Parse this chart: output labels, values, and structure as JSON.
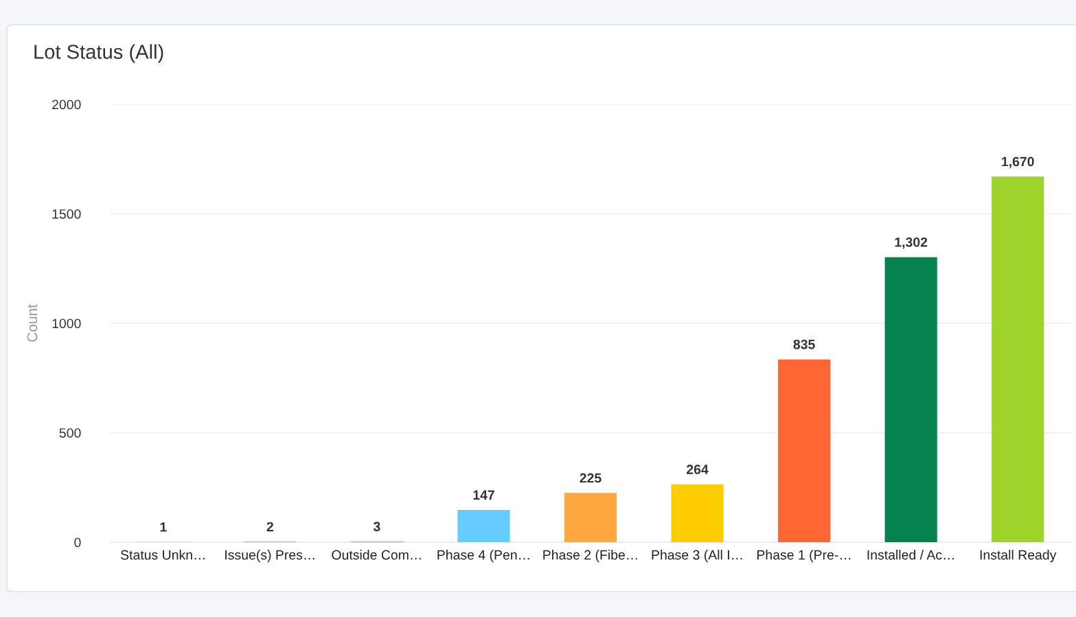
{
  "chart_data": {
    "type": "bar",
    "title": "Lot Status (All)",
    "ylabel": "Count",
    "categories": [
      "Status Unkn…",
      "Issue(s) Pres…",
      "Outside Com…",
      "Phase 4 (Pen…",
      "Phase 2 (Fibe…",
      "Phase 3 (All I…",
      "Phase 1 (Pre-…",
      "Installed / Ac…",
      "Install Ready"
    ],
    "values": [
      1,
      2,
      3,
      147,
      225,
      264,
      835,
      1302,
      1670
    ],
    "colors": [
      "#9e9e9e",
      "#9e9e9e",
      "#9e9e9e",
      "#66ccff",
      "#ffa83f",
      "#ffcc00",
      "#ff6633",
      "#05834e",
      "#9dd32a"
    ],
    "value_labels": [
      "1",
      "2",
      "3",
      "147",
      "225",
      "264",
      "835",
      "1,302",
      "1,670"
    ],
    "ylim": [
      0,
      2000
    ],
    "yticks": [
      0,
      500,
      1000,
      1500,
      2000
    ],
    "grid": "y"
  }
}
